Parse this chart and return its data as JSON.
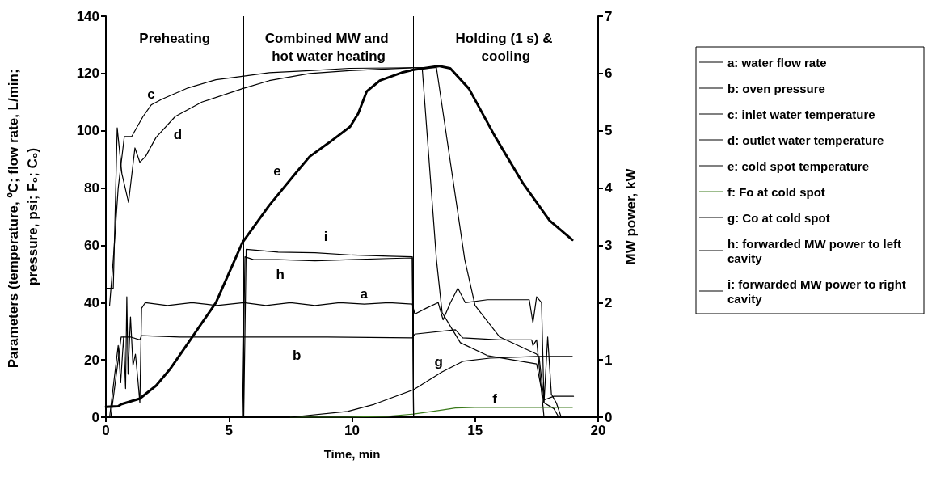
{
  "chart_data": {
    "type": "line",
    "xlabel": "Time, min",
    "ylabel": "Parameters (temperature, ºC; flow rate, L/min; pressure, psi; F₀; C₀)",
    "y2label": "MW power, kW",
    "xlim": [
      0,
      20
    ],
    "xticks": [
      0,
      5,
      10,
      15,
      20
    ],
    "ylim": [
      0,
      140
    ],
    "yticks": [
      0,
      20,
      40,
      60,
      80,
      100,
      120,
      140
    ],
    "y2lim": [
      0,
      7
    ],
    "y2ticks": [
      0,
      1,
      2,
      3,
      4,
      5,
      6,
      7
    ],
    "grid": false,
    "legend": "right",
    "marker": "none",
    "line_style": "solid",
    "ref_lines": [
      {
        "axis": "x",
        "value": 5.6,
        "color": "#000000"
      },
      {
        "axis": "x",
        "value": 12.5,
        "color": "#000000"
      }
    ],
    "annotations": [
      "Preheating",
      "Combined MW and hot water heating",
      "Holding (1 s) & cooling",
      "a",
      "b",
      "c",
      "d",
      "e",
      "f",
      "g",
      "h",
      "i"
    ],
    "series": [
      {
        "name": "a: water flow rate",
        "color": "#000000",
        "x": [
          0.15,
          0.5,
          0.6,
          0.72,
          0.8,
          0.85,
          0.9,
          1.0,
          1.1,
          1.2,
          1.3,
          1.38,
          1.45,
          1.6,
          2.5,
          3.5,
          4.5,
          5.6,
          6.5,
          7.5,
          8.5,
          9.5,
          10.5,
          11.5,
          12.45,
          12.55,
          13.0,
          13.5,
          13.7,
          14.0,
          14.3,
          14.6,
          15.5,
          16.5,
          17.2,
          17.35,
          17.5,
          17.7,
          17.8,
          17.95,
          18.1,
          18.3,
          18.5,
          19.0
        ],
        "values": [
          0,
          25,
          12,
          28,
          10,
          42,
          15,
          35,
          18,
          22,
          13,
          5,
          38,
          40,
          39,
          40,
          39,
          40,
          39,
          40,
          39,
          40,
          39.5,
          40,
          39.5,
          36,
          38,
          40,
          34,
          40,
          45,
          40,
          41,
          41,
          41,
          33,
          42,
          40,
          5,
          28,
          8,
          5,
          0,
          0
        ]
      },
      {
        "name": "b: oven pressure",
        "color": "#000000",
        "x": [
          0.2,
          0.62,
          1.0,
          1.38,
          1.45,
          3.0,
          6.0,
          9.0,
          12.45,
          12.55,
          14.2,
          14.5,
          16.0,
          17.3,
          17.35,
          17.5,
          17.8,
          19.0
        ],
        "values": [
          0,
          28,
          28,
          27,
          28.5,
          28,
          28,
          28,
          27.7,
          29,
          30.5,
          27.7,
          27,
          27,
          25,
          27,
          0,
          0
        ]
      },
      {
        "name": "c: inlet water temperature",
        "color": "#000000",
        "x": [
          0.15,
          0.3,
          0.5,
          0.75,
          1.05,
          1.51,
          1.84,
          2.27,
          3.35,
          4.47,
          5.55,
          6.64,
          8.28,
          9.9,
          12.45,
          12.85,
          13.43,
          13.66,
          14.4,
          15.5,
          17.5,
          17.8,
          18.2,
          18.4,
          19.0
        ],
        "values": [
          39,
          55,
          80,
          98,
          98,
          105,
          109,
          111,
          115,
          117.8,
          119,
          120.3,
          121,
          121.8,
          122,
          122,
          55,
          36.5,
          26,
          21.5,
          18.6,
          5,
          3,
          0,
          0
        ]
      },
      {
        "name": "d: outlet water temperature",
        "color": "#000000",
        "x": [
          0,
          0.3,
          0.46,
          0.65,
          0.92,
          1.18,
          1.38,
          1.61,
          2.04,
          2.82,
          3.9,
          5.55,
          6.64,
          8.28,
          9.9,
          12.45,
          13.43,
          14.58,
          15.0,
          16.0,
          17.5,
          17.6,
          17.8,
          18.2,
          19.0
        ],
        "values": [
          45,
          45,
          101,
          85,
          75,
          94,
          89,
          91,
          97.7,
          105,
          110,
          114.7,
          117.5,
          120,
          121,
          122,
          122,
          55,
          39,
          28,
          22,
          21,
          6,
          7.3,
          7.3
        ]
      },
      {
        "name": "e: cold spot temperature",
        "color": "#000000",
        "x": [
          0,
          0.5,
          0.62,
          1.38,
          2.04,
          2.6,
          3.35,
          4.47,
          5.55,
          6.64,
          7.75,
          8.28,
          9.06,
          9.92,
          10.25,
          10.6,
          11.13,
          12.02,
          12.45,
          13.53,
          13.99,
          14.75,
          15.83,
          16.95,
          18.03,
          18.95
        ],
        "values": [
          3.6,
          3.8,
          4.5,
          6.5,
          11,
          16.7,
          26,
          40,
          61,
          74,
          85.6,
          91,
          95.8,
          101.4,
          106,
          113.8,
          117.5,
          120.3,
          121.2,
          122.6,
          121.8,
          114.7,
          97.7,
          81.6,
          68.6,
          61.9
        ]
      },
      {
        "name": "f: Fo at cold spot",
        "color": "#3a7a1a",
        "x": [
          7.5,
          9.82,
          11.46,
          12.5,
          13.66,
          14.2,
          15.0,
          18.95
        ],
        "values": [
          0,
          0,
          0.3,
          1.1,
          2.5,
          3.2,
          3.4,
          3.4
        ]
      },
      {
        "name": "g: Co at cold spot",
        "color": "#000000",
        "x": [
          7.5,
          9.82,
          10.9,
          12.5,
          13.66,
          14.5,
          15.6,
          17.5,
          18.95
        ],
        "values": [
          0,
          2,
          4.5,
          9.6,
          15.8,
          19.5,
          20.6,
          21.2,
          21.2
        ]
      },
      {
        "name": "h: forwarded MW power to left cavity",
        "color": "#000000",
        "axis": "y2",
        "x": [
          0,
          5.55,
          5.65,
          6.0,
          7.0,
          8.5,
          10.0,
          11.5,
          12.45,
          12.5,
          19.0
        ],
        "values": [
          0,
          0,
          2.8,
          2.75,
          2.75,
          2.73,
          2.75,
          2.77,
          2.78,
          0,
          0
        ]
      },
      {
        "name": "i: forwarded MW power to right cavity",
        "color": "#000000",
        "axis": "y2",
        "x": [
          5.6,
          5.7,
          7.0,
          8.5,
          10.0,
          11.5,
          12.45,
          12.5
        ],
        "values": [
          0,
          2.93,
          2.88,
          2.87,
          2.83,
          2.81,
          2.8,
          0
        ]
      }
    ]
  }
}
